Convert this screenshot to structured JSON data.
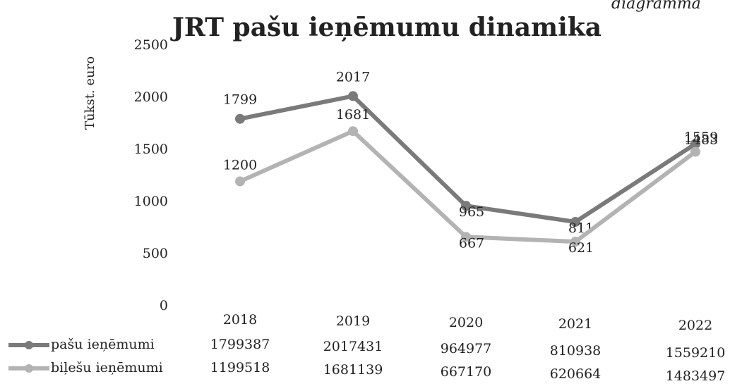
{
  "chart_data": {
    "type": "line",
    "title": "JRT pašu ieņēmumu dinamika",
    "annotation": "diagramma",
    "y_label": "Tūkst. euro",
    "categories": [
      "2018",
      "2019",
      "2020",
      "2021",
      "2022"
    ],
    "series": [
      {
        "name": "pašu ieņēmumi",
        "color": "#7a7a7a",
        "values": [
          1799.387,
          2017.431,
          964.977,
          810.938,
          1559.21
        ],
        "value_labels": [
          "1799",
          "2017",
          "965",
          "811",
          "1559"
        ],
        "table_labels": [
          "1799387",
          "2017431",
          "964977",
          "810938",
          "1559210"
        ]
      },
      {
        "name": "biļešu ieņēmumi",
        "color": "#b3b3b3",
        "values": [
          1199.518,
          1681.139,
          667.17,
          620.664,
          1483.497
        ],
        "value_labels": [
          "1200",
          "1681",
          "667",
          "621",
          "1483"
        ],
        "table_labels": [
          "1199518",
          "1681139",
          "667170",
          "620664",
          "1483497"
        ]
      }
    ],
    "ylim": [
      0,
      2500
    ],
    "yticks": [
      0,
      500,
      1000,
      1500,
      2000,
      2500
    ]
  }
}
